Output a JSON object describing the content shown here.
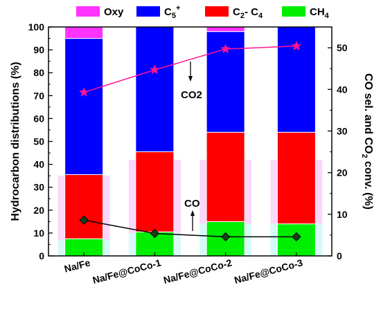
{
  "chart_data": {
    "type": "bar",
    "stacked": true,
    "categories": [
      "Na/Fe",
      "Na/Fe@CoCo-1",
      "Na/Fe@CoCo-2",
      "Na/Fe@CoCo-3"
    ],
    "series": [
      {
        "name": "Oxy",
        "color": "#ff33ff",
        "values": [
          5.0,
          0.0,
          2.0,
          0.0
        ]
      },
      {
        "name": "C5+",
        "legend_base": "C",
        "legend_sup": "5",
        "legend_sup2": "+",
        "color": "#0000ff",
        "values": [
          59.5,
          54.5,
          44.0,
          46.0
        ]
      },
      {
        "name": "C2- C4",
        "legend_parts": [
          "C",
          "2",
          "- C",
          "4"
        ],
        "color": "#ff0000",
        "values": [
          28.0,
          35.0,
          39.0,
          40.0
        ]
      },
      {
        "name": "CH4",
        "legend_parts": [
          "CH",
          "4"
        ],
        "color": "#00ee00",
        "values": [
          7.5,
          10.5,
          15.0,
          14.0
        ]
      }
    ],
    "line_series": [
      {
        "name": "CO2 conv.",
        "color": "#ff1493",
        "marker": "star",
        "axis": "right",
        "values": [
          39.3,
          44.7,
          49.7,
          50.4
        ]
      },
      {
        "name": "CO sel.",
        "color": "#000000",
        "marker": "diamond",
        "axis": "right",
        "values": [
          8.6,
          5.4,
          4.6,
          4.6
        ]
      }
    ],
    "annotations": [
      {
        "text": "CO2",
        "points_to": "CO2 conv.",
        "arrow": "down"
      },
      {
        "text": "CO",
        "points_to": "CO sel.",
        "arrow": "up"
      }
    ],
    "ylabel": "Hydrocarbon distributions (%)",
    "ylim": [
      0,
      100
    ],
    "yticks": [
      0,
      10,
      20,
      30,
      40,
      50,
      60,
      70,
      80,
      90,
      100
    ],
    "y2label_parts": [
      "CO sel. and CO",
      "2",
      " conv. (%)"
    ],
    "y2lim": [
      0,
      55
    ],
    "y2ticks": [
      0,
      10,
      20,
      30,
      40,
      50
    ],
    "legend_position": "top",
    "grid": false
  }
}
